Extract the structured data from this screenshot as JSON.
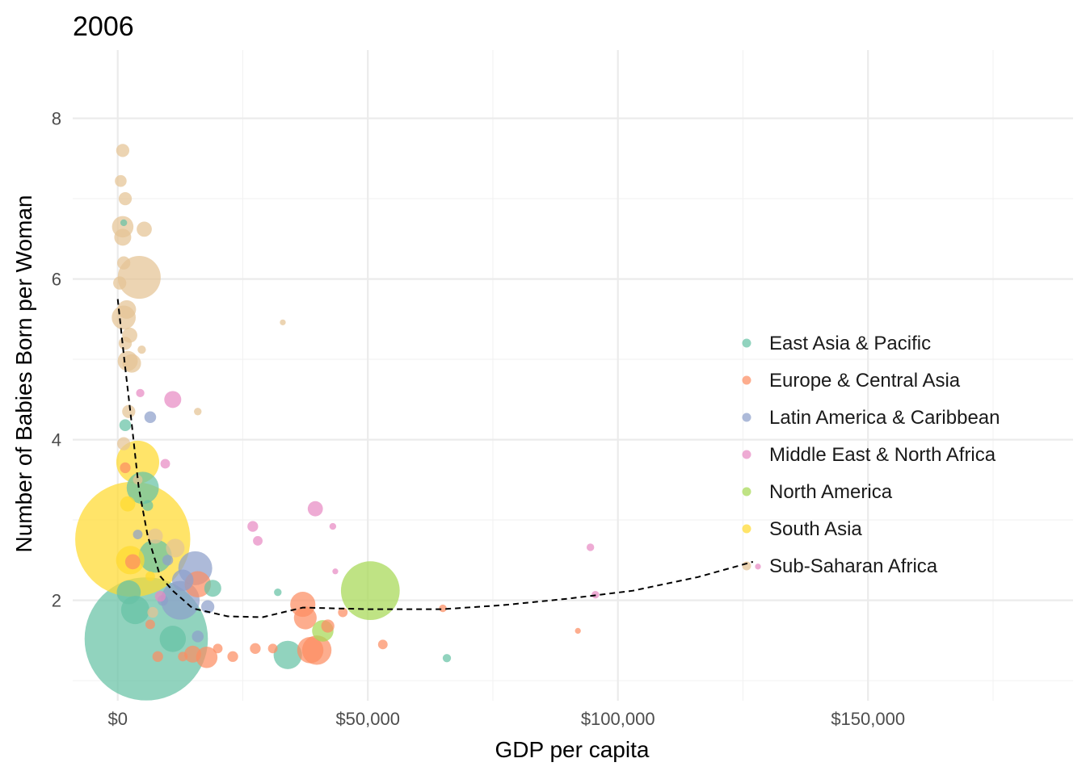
{
  "chart_data": {
    "type": "scatter",
    "title": "2006",
    "xlabel": "GDP per capita",
    "ylabel": "Number of Babies Born per Woman",
    "xlim": [
      -9000,
      191000
    ],
    "ylim": [
      0.75,
      8.85
    ],
    "x_ticks": [
      0,
      50000,
      100000,
      150000
    ],
    "x_tick_labels": [
      "$0",
      "$50,000",
      "$100,000",
      "$150,000"
    ],
    "y_ticks": [
      2,
      4,
      6,
      8
    ],
    "y_tick_labels": [
      "2",
      "4",
      "6",
      "8"
    ],
    "grid": true,
    "legend_position": "right",
    "size_encoding": "population",
    "series": [
      {
        "name": "East Asia & Pacific",
        "color": "#66c2a5",
        "points": [
          {
            "x": 5700,
            "y": 1.52,
            "size": 1320
          },
          {
            "x": 5000,
            "y": 3.4,
            "size": 90
          },
          {
            "x": 7500,
            "y": 2.55,
            "size": 95
          },
          {
            "x": 11000,
            "y": 1.52,
            "size": 60
          },
          {
            "x": 3500,
            "y": 1.88,
            "size": 70
          },
          {
            "x": 34000,
            "y": 1.32,
            "size": 70
          },
          {
            "x": 2200,
            "y": 2.1,
            "size": 50
          },
          {
            "x": 19000,
            "y": 2.15,
            "size": 25
          },
          {
            "x": 1500,
            "y": 4.18,
            "size": 12
          },
          {
            "x": 65800,
            "y": 1.28,
            "size": 6
          },
          {
            "x": 32000,
            "y": 2.1,
            "size": 5
          },
          {
            "x": 1200,
            "y": 6.7,
            "size": 4
          },
          {
            "x": 6000,
            "y": 3.18,
            "size": 10
          }
        ]
      },
      {
        "name": "Europe & Central Asia",
        "color": "#fc8d62",
        "points": [
          {
            "x": 39800,
            "y": 1.38,
            "size": 75
          },
          {
            "x": 37000,
            "y": 1.95,
            "size": 55
          },
          {
            "x": 16000,
            "y": 2.2,
            "size": 60
          },
          {
            "x": 37500,
            "y": 1.78,
            "size": 45
          },
          {
            "x": 17800,
            "y": 1.29,
            "size": 40
          },
          {
            "x": 15000,
            "y": 1.33,
            "size": 25
          },
          {
            "x": 38500,
            "y": 1.38,
            "size": 60
          },
          {
            "x": 42000,
            "y": 1.68,
            "size": 15
          },
          {
            "x": 45000,
            "y": 1.85,
            "size": 8
          },
          {
            "x": 53000,
            "y": 1.45,
            "size": 8
          },
          {
            "x": 27500,
            "y": 1.4,
            "size": 10
          },
          {
            "x": 31000,
            "y": 1.4,
            "size": 8
          },
          {
            "x": 23000,
            "y": 1.3,
            "size": 10
          },
          {
            "x": 20000,
            "y": 1.4,
            "size": 8
          },
          {
            "x": 13000,
            "y": 1.3,
            "size": 8
          },
          {
            "x": 8000,
            "y": 1.3,
            "size": 10
          },
          {
            "x": 3000,
            "y": 2.48,
            "size": 20
          },
          {
            "x": 6500,
            "y": 1.7,
            "size": 8
          },
          {
            "x": 65000,
            "y": 1.9,
            "size": 5
          },
          {
            "x": 92000,
            "y": 1.62,
            "size": 3
          },
          {
            "x": 1500,
            "y": 3.65,
            "size": 10
          }
        ]
      },
      {
        "name": "Latin America & Caribbean",
        "color": "#8da0cb",
        "points": [
          {
            "x": 12500,
            "y": 2.0,
            "size": 130
          },
          {
            "x": 15500,
            "y": 2.4,
            "size": 100
          },
          {
            "x": 13000,
            "y": 2.25,
            "size": 40
          },
          {
            "x": 18000,
            "y": 1.92,
            "size": 15
          },
          {
            "x": 6500,
            "y": 4.28,
            "size": 12
          },
          {
            "x": 16000,
            "y": 1.55,
            "size": 12
          },
          {
            "x": 9000,
            "y": 2.0,
            "size": 10
          },
          {
            "x": 4000,
            "y": 2.82,
            "size": 8
          },
          {
            "x": 10000,
            "y": 2.5,
            "size": 10
          }
        ]
      },
      {
        "name": "Middle East & North Africa",
        "color": "#e78ac3",
        "points": [
          {
            "x": 11000,
            "y": 4.5,
            "size": 25
          },
          {
            "x": 39500,
            "y": 3.14,
            "size": 20
          },
          {
            "x": 27000,
            "y": 2.92,
            "size": 10
          },
          {
            "x": 28000,
            "y": 2.74,
            "size": 8
          },
          {
            "x": 9500,
            "y": 3.7,
            "size": 8
          },
          {
            "x": 4500,
            "y": 4.58,
            "size": 6
          },
          {
            "x": 94500,
            "y": 2.66,
            "size": 5
          },
          {
            "x": 95500,
            "y": 2.07,
            "size": 5
          },
          {
            "x": 43000,
            "y": 2.92,
            "size": 4
          },
          {
            "x": 43500,
            "y": 2.36,
            "size": 3
          },
          {
            "x": 8500,
            "y": 2.05,
            "size": 10
          },
          {
            "x": 128000,
            "y": 2.42,
            "size": 3
          }
        ]
      },
      {
        "name": "North America",
        "color": "#a6d854",
        "points": [
          {
            "x": 50500,
            "y": 2.12,
            "size": 300
          },
          {
            "x": 41000,
            "y": 1.62,
            "size": 40
          }
        ]
      },
      {
        "name": "South Asia",
        "color": "#ffd92f",
        "points": [
          {
            "x": 3000,
            "y": 2.76,
            "size": 1150
          },
          {
            "x": 4000,
            "y": 3.72,
            "size": 160
          },
          {
            "x": 2500,
            "y": 2.5,
            "size": 70
          },
          {
            "x": 2000,
            "y": 3.2,
            "size": 20
          },
          {
            "x": 6500,
            "y": 2.3,
            "size": 8
          }
        ]
      },
      {
        "name": "Sub-Saharan Africa",
        "color": "#e5c494",
        "points": [
          {
            "x": 4300,
            "y": 6.02,
            "size": 160
          },
          {
            "x": 1000,
            "y": 6.65,
            "size": 40
          },
          {
            "x": 1200,
            "y": 5.52,
            "size": 50
          },
          {
            "x": 1800,
            "y": 5.62,
            "size": 30
          },
          {
            "x": 1000,
            "y": 7.6,
            "size": 15
          },
          {
            "x": 600,
            "y": 7.22,
            "size": 12
          },
          {
            "x": 1500,
            "y": 7.0,
            "size": 15
          },
          {
            "x": 5300,
            "y": 6.62,
            "size": 20
          },
          {
            "x": 1000,
            "y": 6.52,
            "size": 25
          },
          {
            "x": 1200,
            "y": 6.2,
            "size": 15
          },
          {
            "x": 2400,
            "y": 5.3,
            "size": 20
          },
          {
            "x": 2000,
            "y": 4.98,
            "size": 35
          },
          {
            "x": 2800,
            "y": 4.95,
            "size": 30
          },
          {
            "x": 1500,
            "y": 5.2,
            "size": 15
          },
          {
            "x": 400,
            "y": 5.95,
            "size": 15
          },
          {
            "x": 2200,
            "y": 4.35,
            "size": 15
          },
          {
            "x": 1200,
            "y": 3.95,
            "size": 15
          },
          {
            "x": 4800,
            "y": 5.12,
            "size": 6
          },
          {
            "x": 7500,
            "y": 2.8,
            "size": 20
          },
          {
            "x": 11500,
            "y": 2.65,
            "size": 30
          },
          {
            "x": 16000,
            "y": 4.35,
            "size": 5
          },
          {
            "x": 33000,
            "y": 5.46,
            "size": 3
          },
          {
            "x": 7000,
            "y": 1.85,
            "size": 10
          },
          {
            "x": 4000,
            "y": 3.5,
            "size": 8
          }
        ]
      }
    ],
    "trend_line": {
      "style": "dashed",
      "color": "#000000",
      "points": [
        {
          "x": 0,
          "y": 5.75
        },
        {
          "x": 1300,
          "y": 5.0
        },
        {
          "x": 2800,
          "y": 4.2
        },
        {
          "x": 4200,
          "y": 3.4
        },
        {
          "x": 6000,
          "y": 2.8
        },
        {
          "x": 8500,
          "y": 2.3
        },
        {
          "x": 11000,
          "y": 2.12
        },
        {
          "x": 15000,
          "y": 1.9
        },
        {
          "x": 22000,
          "y": 1.8
        },
        {
          "x": 29000,
          "y": 1.79
        },
        {
          "x": 37000,
          "y": 1.91
        },
        {
          "x": 50000,
          "y": 1.89
        },
        {
          "x": 65000,
          "y": 1.89
        },
        {
          "x": 77000,
          "y": 1.94
        },
        {
          "x": 90000,
          "y": 2.02
        },
        {
          "x": 103000,
          "y": 2.12
        },
        {
          "x": 116000,
          "y": 2.29
        },
        {
          "x": 127000,
          "y": 2.48
        }
      ]
    }
  }
}
